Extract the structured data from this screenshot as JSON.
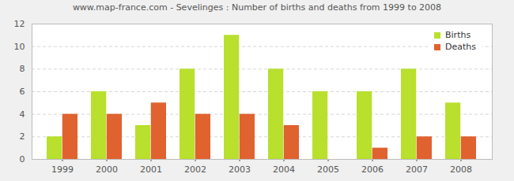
{
  "chart_data": {
    "type": "bar",
    "title": "www.map-france.com - Sevelinges : Number of births and deaths from 1999 to 2008",
    "categories": [
      "1999",
      "2000",
      "2001",
      "2002",
      "2003",
      "2004",
      "2005",
      "2006",
      "2007",
      "2008"
    ],
    "series": [
      {
        "name": "Births",
        "color": "#b8e02c",
        "values": [
          2,
          6,
          3,
          8,
          11,
          8,
          6,
          6,
          8,
          5
        ]
      },
      {
        "name": "Deaths",
        "color": "#e0622f",
        "values": [
          4,
          4,
          5,
          4,
          4,
          3,
          0,
          1,
          2,
          2
        ]
      }
    ],
    "ylim": [
      0,
      12
    ],
    "yticks": [
      0,
      2,
      4,
      6,
      8,
      10,
      12
    ],
    "grid": true,
    "legend": "top-right"
  }
}
